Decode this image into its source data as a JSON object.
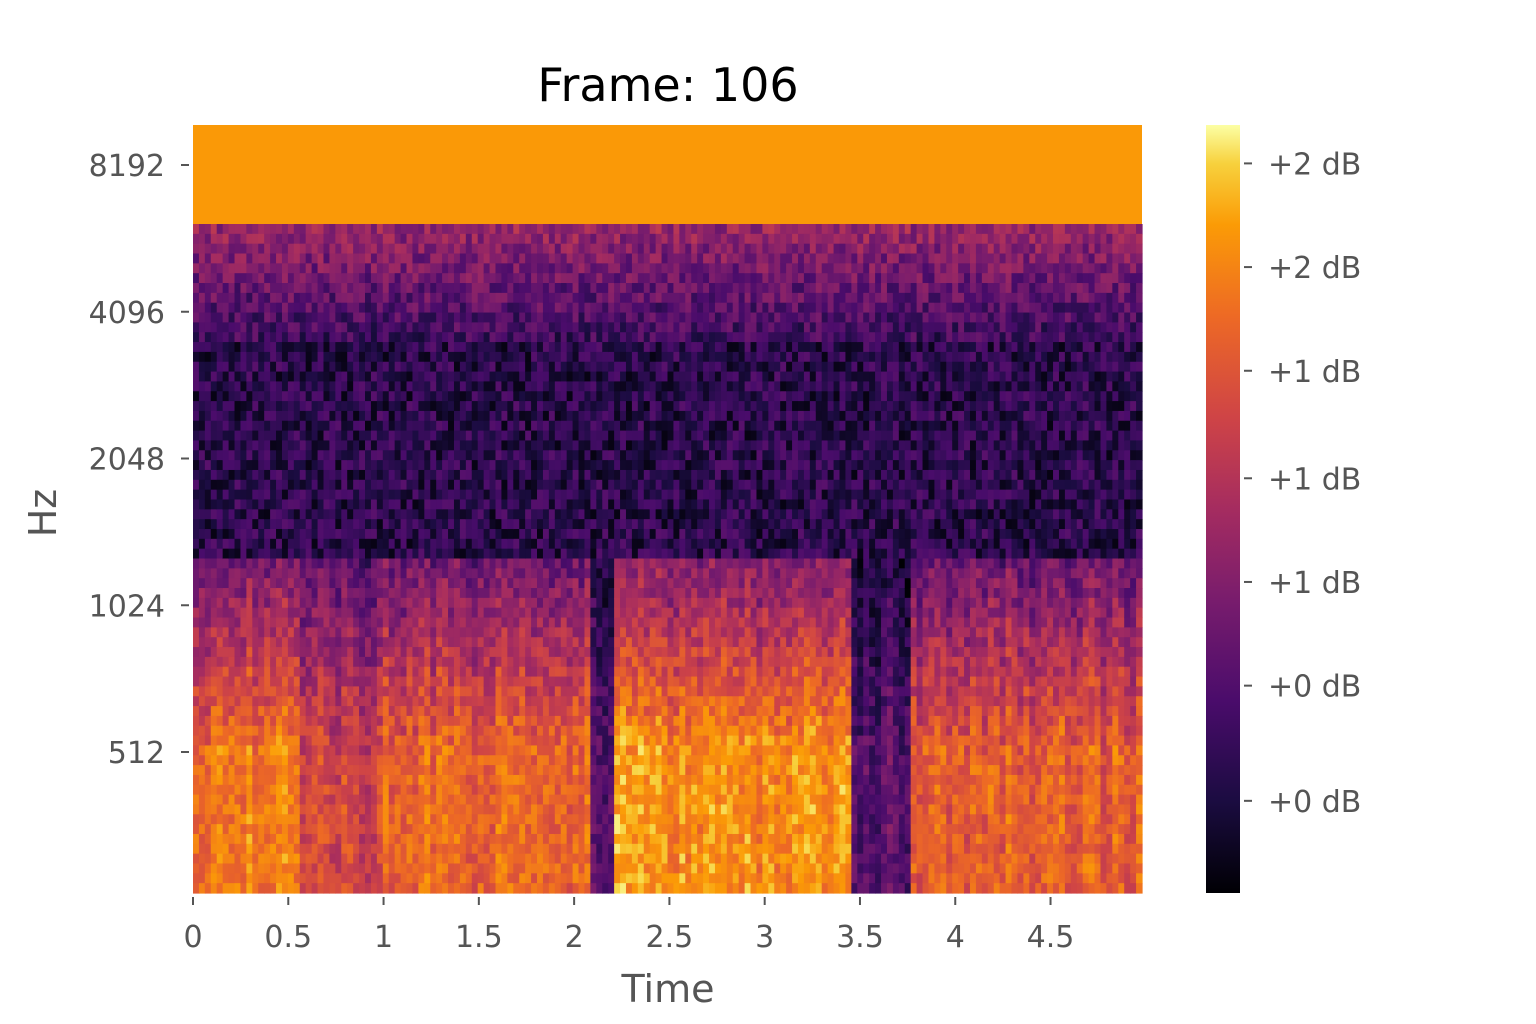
{
  "chart_data": {
    "type": "heatmap",
    "title": "Frame: 106",
    "xlabel": "Time",
    "ylabel": "Hz",
    "y_scale": "log2",
    "xlim": [
      0,
      4.98
    ],
    "x_ticks": [
      "0",
      "0.5",
      "1",
      "1.5",
      "2",
      "2.5",
      "3",
      "3.5",
      "4",
      "4.5"
    ],
    "x_tick_values": [
      0,
      0.5,
      1,
      1.5,
      2,
      2.5,
      3,
      3.5,
      4,
      4.5
    ],
    "y_ticks": [
      "512",
      "1024",
      "2048",
      "4096",
      "8192"
    ],
    "y_tick_values": [
      512,
      1024,
      2048,
      4096,
      8192
    ],
    "colorbar": {
      "colormap": "inferno",
      "tick_labels": [
        "+0 dB",
        "+0 dB",
        "+1 dB",
        "+1 dB",
        "+1 dB",
        "+2 dB",
        "+2 dB"
      ],
      "tick_fractions": [
        0.12,
        0.27,
        0.405,
        0.54,
        0.68,
        0.815,
        0.95
      ]
    },
    "grid": false,
    "description_values": {
      "top_band_level": 0.87,
      "high_freq_noise_level": 0.22,
      "low_freq_energy_segments": [
        {
          "start": 0.0,
          "end": 0.55,
          "level": 0.78
        },
        {
          "start": 0.55,
          "end": 1.0,
          "level": 0.62
        },
        {
          "start": 1.0,
          "end": 2.1,
          "level": 0.74
        },
        {
          "start": 2.1,
          "end": 2.2,
          "level": 0.28
        },
        {
          "start": 2.2,
          "end": 3.45,
          "level": 0.84
        },
        {
          "start": 3.45,
          "end": 3.78,
          "level": 0.3
        },
        {
          "start": 3.78,
          "end": 4.98,
          "level": 0.72
        }
      ]
    }
  }
}
